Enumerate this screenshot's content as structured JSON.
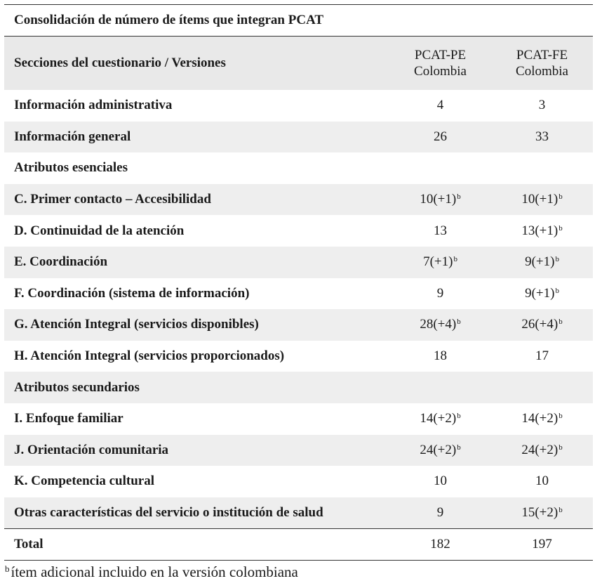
{
  "caption": "Consolidación de número de ítems que integran PCAT",
  "header": {
    "section_label": "Secciones del cuestionario / Versiones",
    "col1_line1": "PCAT-PE",
    "col1_line2": "Colombia",
    "col2_line1": "PCAT-FE",
    "col2_line2": "Colombia"
  },
  "rows": [
    {
      "label": "Información administrativa",
      "pe": "4",
      "pe_sup": "",
      "fe": "3",
      "fe_sup": ""
    },
    {
      "label": "Información general",
      "pe": "26",
      "pe_sup": "",
      "fe": "33",
      "fe_sup": ""
    },
    {
      "label": "Atributos esenciales",
      "pe": "",
      "pe_sup": "",
      "fe": "",
      "fe_sup": ""
    },
    {
      "label": "C. Primer contacto – Accesibilidad",
      "pe": "10(+1)",
      "pe_sup": "b",
      "fe": "10(+1)",
      "fe_sup": "b"
    },
    {
      "label": "D. Continuidad de la atención",
      "pe": "13",
      "pe_sup": "",
      "fe": "13(+1)",
      "fe_sup": "b"
    },
    {
      "label": "E. Coordinación",
      "pe": "7(+1)",
      "pe_sup": "b",
      "fe": "9(+1)",
      "fe_sup": "b"
    },
    {
      "label": "F. Coordinación (sistema de información)",
      "pe": "9",
      "pe_sup": "",
      "fe": "9(+1)",
      "fe_sup": "b"
    },
    {
      "label": "G. Atención Integral (servicios disponibles)",
      "pe": "28(+4)",
      "pe_sup": "b",
      "fe": "26(+4)",
      "fe_sup": "b"
    },
    {
      "label": "H. Atención Integral (servicios proporcionados)",
      "pe": "18",
      "pe_sup": "",
      "fe": "17",
      "fe_sup": ""
    },
    {
      "label": "Atributos secundarios",
      "pe": "",
      "pe_sup": "",
      "fe": "",
      "fe_sup": ""
    },
    {
      "label": "I. Enfoque familiar",
      "pe": "14(+2)",
      "pe_sup": "b",
      "fe": "14(+2)",
      "fe_sup": "b"
    },
    {
      "label": "J. Orientación comunitaria",
      "pe": "24(+2)",
      "pe_sup": "b",
      "fe": "24(+2)",
      "fe_sup": "b"
    },
    {
      "label": "K. Competencia cultural",
      "pe": "10",
      "pe_sup": "",
      "fe": "10",
      "fe_sup": ""
    },
    {
      "label": "Otras características del servicio o institución de salud",
      "pe": "9",
      "pe_sup": "",
      "fe": "15(+2)",
      "fe_sup": "b"
    }
  ],
  "total": {
    "label": "Total",
    "pe": "182",
    "fe": "197"
  },
  "footnote": {
    "marker": "b",
    "text": "ítem adicional incluido en la versión colombiana"
  }
}
